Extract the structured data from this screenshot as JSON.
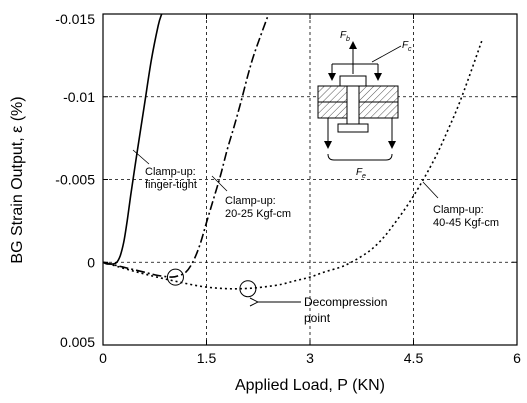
{
  "chart_data": {
    "type": "line",
    "title": "",
    "xlabel": "Applied Load, P (KN)",
    "ylabel": "BG Strain Output, ε (%)",
    "xlim": [
      0,
      6
    ],
    "ylim": [
      0.005,
      -0.015
    ],
    "y_axis_inverted": true,
    "grid": "dashed",
    "x_ticks": [
      "0",
      "1.5",
      "3",
      "4.5",
      "6"
    ],
    "x_tick_values": [
      0,
      1.5,
      3,
      4.5,
      6
    ],
    "y_ticks": [
      "-0.015",
      "-0.01",
      "-0.005",
      "0",
      "0.005"
    ],
    "y_tick_values": [
      -0.015,
      -0.01,
      -0.005,
      0,
      0.005
    ],
    "series": [
      {
        "name": "Clamp-up: finger-tight",
        "line_style": "solid",
        "x": [
          0,
          0.05,
          0.1,
          0.15,
          0.2,
          0.25,
          0.3,
          0.35,
          0.4,
          0.5,
          0.6,
          0.7,
          0.8,
          0.85
        ],
        "y": [
          0,
          0.0001,
          0.0001,
          0.0001,
          0,
          -0.0004,
          -0.0012,
          -0.0025,
          -0.004,
          -0.0068,
          -0.0095,
          -0.0122,
          -0.0143,
          -0.015
        ]
      },
      {
        "name": "Clamp-up: 20-25 Kgf-cm",
        "line_style": "dash-dot",
        "x": [
          0,
          0.2,
          0.4,
          0.6,
          0.8,
          1.0,
          1.1,
          1.2,
          1.3,
          1.4,
          1.5,
          1.6,
          1.7,
          1.8,
          1.9,
          2.0,
          2.1,
          2.2,
          2.4
        ],
        "y": [
          0,
          0.0002,
          0.0004,
          0.0006,
          0.0008,
          0.0009,
          0.0008,
          0.0006,
          0,
          -0.001,
          -0.0024,
          -0.0038,
          -0.0052,
          -0.0068,
          -0.0082,
          -0.0097,
          -0.0113,
          -0.0127,
          -0.015
        ]
      },
      {
        "name": "Clamp-up: 40-45 Kgf-cm",
        "line_style": "dotted",
        "x": [
          0,
          0.5,
          1.0,
          1.5,
          2.0,
          2.5,
          2.8,
          3.0,
          3.2,
          3.5,
          3.8,
          4.0,
          4.2,
          4.5,
          4.8,
          5.0,
          5.2,
          5.5
        ],
        "y": [
          0,
          0.0006,
          0.0011,
          0.0015,
          0.0016,
          0.0014,
          0.0011,
          0.0009,
          0.0006,
          0.0002,
          -0.0005,
          -0.0012,
          -0.0022,
          -0.004,
          -0.0062,
          -0.008,
          -0.01,
          -0.0135
        ]
      }
    ],
    "annotations": [
      {
        "lines": [
          "Clamp-up:",
          "finger-tight"
        ]
      },
      {
        "lines": [
          "Clamp-up:",
          "20-25 Kgf-cm"
        ]
      },
      {
        "lines": [
          "Clamp-up:",
          "40-45 Kgf-cm"
        ]
      },
      {
        "lines": [
          "Decompression",
          "point"
        ]
      }
    ],
    "decompression_points": [
      {
        "x": 1.05,
        "y": 0.0009
      },
      {
        "x": 2.1,
        "y": 0.0016
      }
    ],
    "inset_labels": [
      "F",
      "F",
      "F"
    ],
    "inset_subscripts": [
      "b",
      "c",
      "e"
    ]
  }
}
